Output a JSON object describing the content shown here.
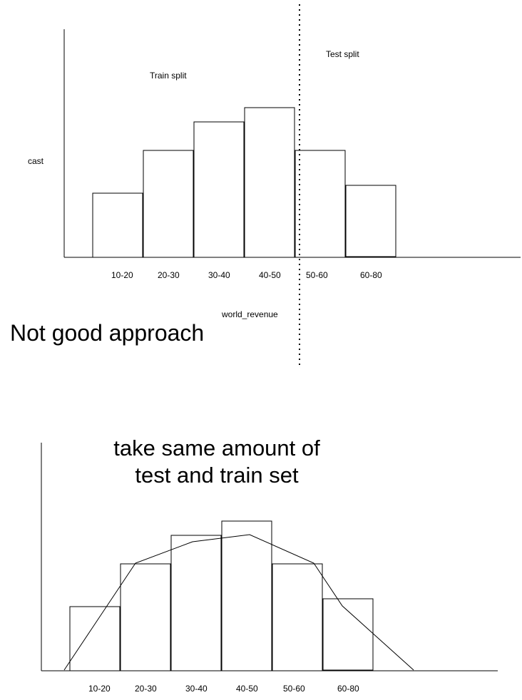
{
  "diagram_top": {
    "y_axis_label": "cast",
    "x_axis_label": "world_revenue",
    "categories": [
      "10-20",
      "20-30",
      "30-40",
      "40-50",
      "50-60",
      "60-80"
    ],
    "train_split_label": "Train split",
    "test_split_label": "Test split",
    "verdict": "Not good approach"
  },
  "diagram_bottom": {
    "title_line_1": "take same amount of",
    "title_line_2": "test and train set",
    "categories": [
      "10-20",
      "20-30",
      "30-40",
      "40-50",
      "50-60",
      "60-80"
    ]
  }
}
